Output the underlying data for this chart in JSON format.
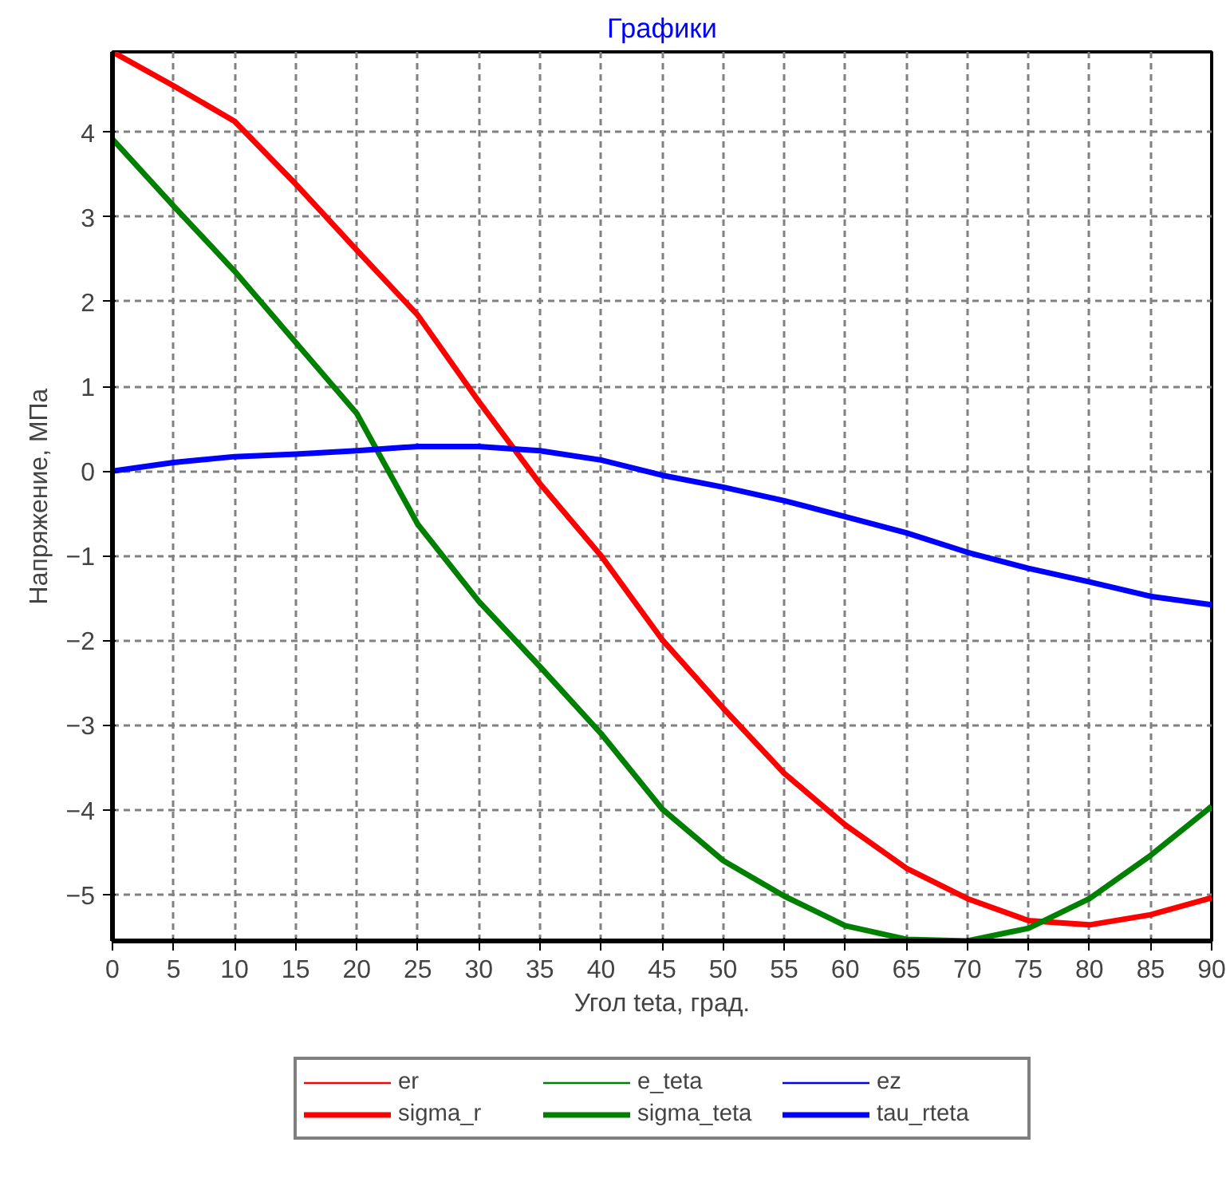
{
  "chart_data": {
    "type": "line",
    "title": "Графики",
    "xlabel": "Угол teta, град.",
    "ylabel": "Напряжение, МПа",
    "x": [
      0,
      5,
      10,
      15,
      20,
      25,
      30,
      35,
      40,
      45,
      50,
      55,
      60,
      65,
      70,
      75,
      80,
      85,
      90
    ],
    "xlim": [
      0,
      90
    ],
    "ylim": [
      -5.55,
      4.95
    ],
    "xticks": [
      0,
      5,
      10,
      15,
      20,
      25,
      30,
      35,
      40,
      45,
      50,
      55,
      60,
      65,
      70,
      75,
      80,
      85,
      90
    ],
    "yticks": [
      -5,
      -4,
      -3,
      -2,
      -1,
      0,
      1,
      2,
      3,
      4
    ],
    "grid": true,
    "legend": "bottom",
    "line_style": "solid",
    "series": [
      {
        "name": "er",
        "color": "#ff0000",
        "values": [
          null,
          null,
          null,
          null,
          null,
          null,
          null,
          null,
          null,
          null,
          null,
          null,
          null,
          null,
          null,
          null,
          null,
          null,
          null
        ]
      },
      {
        "name": "e_teta",
        "color": "#008000",
        "values": [
          null,
          null,
          null,
          null,
          null,
          null,
          null,
          null,
          null,
          null,
          null,
          null,
          null,
          null,
          null,
          null,
          null,
          null,
          null
        ]
      },
      {
        "name": "ez",
        "color": "#0000ff",
        "values": [
          null,
          null,
          null,
          null,
          null,
          null,
          null,
          null,
          null,
          null,
          null,
          null,
          null,
          null,
          null,
          null,
          null,
          null,
          null
        ]
      },
      {
        "name": "sigma_r",
        "color": "#ff0000",
        "values": [
          4.95,
          4.55,
          4.13,
          3.39,
          2.61,
          1.84,
          0.82,
          -0.15,
          -1.0,
          -1.99,
          -2.8,
          -3.57,
          -4.18,
          -4.69,
          -5.05,
          -5.31,
          -5.36,
          -5.24,
          -5.04
        ]
      },
      {
        "name": "sigma_teta",
        "color": "#008000",
        "values": [
          3.92,
          3.13,
          2.36,
          1.52,
          0.68,
          -0.63,
          -1.54,
          -2.31,
          -3.1,
          -3.99,
          -4.6,
          -5.02,
          -5.37,
          -5.53,
          -5.55,
          -5.4,
          -5.05,
          -4.54,
          -3.96
        ]
      },
      {
        "name": "tau_rteta",
        "color": "#0000ff",
        "values": [
          0,
          0.1,
          0.17,
          0.2,
          0.24,
          0.29,
          0.29,
          0.24,
          0.13,
          -0.05,
          -0.19,
          -0.35,
          -0.54,
          -0.73,
          -0.96,
          -1.15,
          -1.31,
          -1.48,
          -1.58
        ]
      }
    ]
  }
}
